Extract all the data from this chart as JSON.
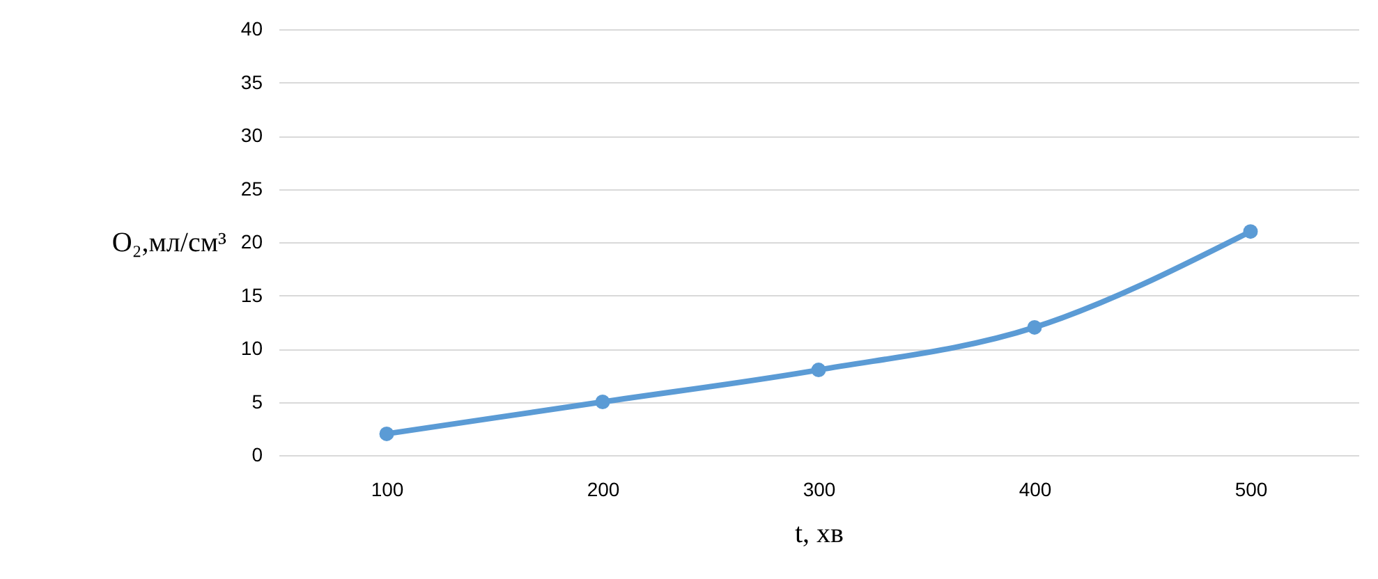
{
  "chart_data": {
    "type": "line",
    "xlabel": "t, хв",
    "ylabel": "O₂,мл/см³",
    "categories": [
      "100",
      "200",
      "300",
      "400",
      "500"
    ],
    "values": [
      2,
      5,
      8,
      12,
      21
    ],
    "color": "#5b9bd5",
    "ylim": [
      0,
      40
    ],
    "yticks": [
      0,
      5,
      10,
      15,
      20,
      25,
      30,
      35,
      40
    ],
    "grid": "y",
    "marker": "circle"
  }
}
